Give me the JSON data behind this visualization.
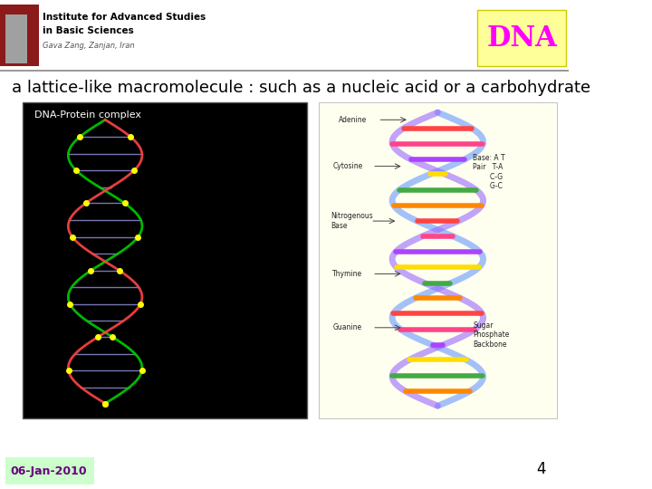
{
  "title": "DNA",
  "title_bg": "#FFFF99",
  "title_color": "#FF00FF",
  "header_bg": "#FFFFFF",
  "slide_bg": "#FFFFFF",
  "subtitle_text": "a lattice-like macromolecule : such as a nucleic acid or a carbohydrate",
  "subtitle_color": "#000000",
  "subtitle_fontsize": 13,
  "logo_dark_red": "#8B1A1A",
  "logo_gray": "#A0A0A0",
  "logo_text1": "Institute for Advanced Studies",
  "logo_text2": "in Basic Sciences",
  "logo_text3": "Gava Zang, Zanjan, Iran",
  "date_text": "06-Jan-2010",
  "date_color": "#6B0080",
  "date_bg": "#CCFFCC",
  "page_num": "4",
  "page_color": "#000000",
  "separator_color": "#888888",
  "dna_black_label": "DNA-Protein complex",
  "dna_black_label_color": "#FFFFFF"
}
